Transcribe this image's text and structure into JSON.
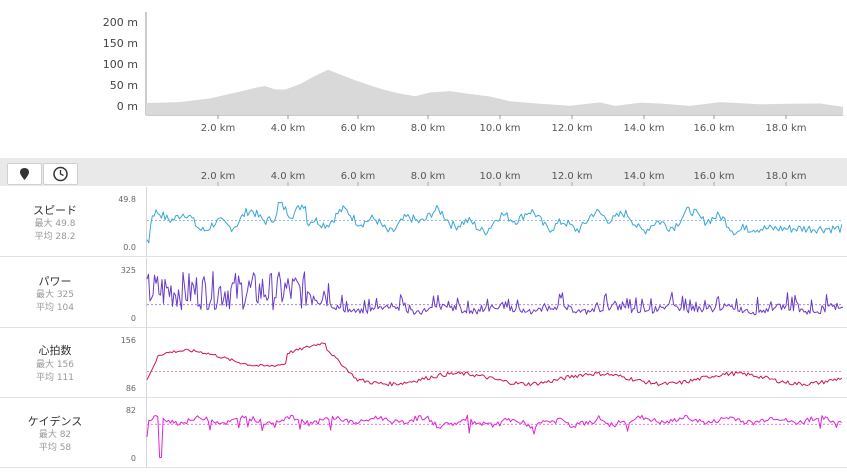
{
  "elevation": {
    "y_labels": [
      "200 m",
      "150 m",
      "100 m",
      "50 m",
      "0 m"
    ],
    "x_labels": [
      "2.0 km",
      "4.0 km",
      "6.0 km",
      "8.0 km",
      "10.0 km",
      "12.0 km",
      "14.0 km",
      "16.0 km",
      "18.0 km"
    ],
    "fill_color": "#d9d9d9"
  },
  "toolbar": {
    "distance_icon": "map-pin-icon",
    "time_icon": "clock-icon",
    "x_labels": [
      "2.0 km",
      "4.0 km",
      "6.0 km",
      "8.0 km",
      "10.0 km",
      "12.0 km",
      "14.0 km",
      "16.0 km",
      "18.0 km"
    ]
  },
  "metrics": [
    {
      "name": "スピード",
      "max_label": "最大 49.8",
      "avg_label": "平均 28.2",
      "ymax": "49.8",
      "ymin": "0.0",
      "color": "#3aa6d8"
    },
    {
      "name": "パワー",
      "max_label": "最大 325",
      "avg_label": "平均 104",
      "ymax": "325",
      "ymin": "0",
      "color": "#6a3bc8"
    },
    {
      "name": "心拍数",
      "max_label": "最大 156",
      "avg_label": "平均 111",
      "ymax": "156",
      "ymin": "86",
      "color": "#d0155a"
    },
    {
      "name": "ケイデンス",
      "max_label": "最大 82",
      "avg_label": "平均 58",
      "ymax": "82",
      "ymin": "0",
      "color": "#e023d8"
    }
  ]
}
